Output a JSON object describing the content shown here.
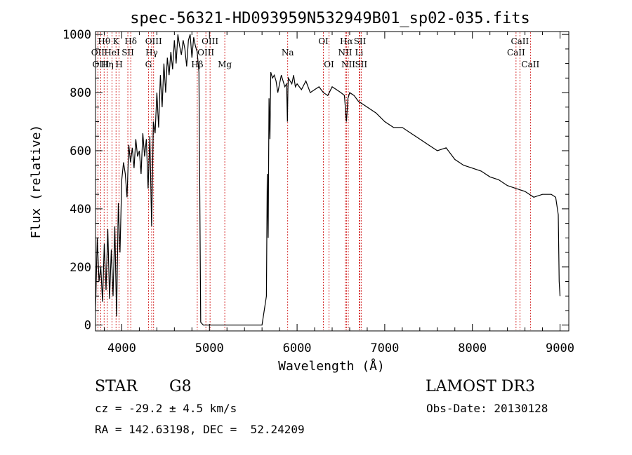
{
  "chart_data": {
    "type": "line",
    "title": "spec-56321-HD093959N532949B01_sp02-035.fits",
    "xlabel": "Wavelength (Å)",
    "ylabel": "Flux (relative)",
    "xlim": [
      3700,
      9100
    ],
    "ylim": [
      -20,
      1010
    ],
    "xticks": [
      4000,
      5000,
      6000,
      7000,
      8000,
      9000
    ],
    "yticks": [
      0,
      200,
      400,
      600,
      800,
      1000
    ],
    "grid": false,
    "series": [
      {
        "name": "flux",
        "x": [
          3700,
          3720,
          3740,
          3760,
          3780,
          3800,
          3820,
          3840,
          3860,
          3880,
          3900,
          3920,
          3940,
          3960,
          3980,
          4000,
          4020,
          4040,
          4060,
          4080,
          4100,
          4120,
          4140,
          4160,
          4180,
          4200,
          4220,
          4240,
          4260,
          4280,
          4300,
          4320,
          4340,
          4360,
          4380,
          4400,
          4420,
          4440,
          4460,
          4480,
          4500,
          4520,
          4540,
          4560,
          4580,
          4600,
          4620,
          4640,
          4660,
          4680,
          4700,
          4720,
          4740,
          4760,
          4780,
          4800,
          4820,
          4840,
          4860,
          4880,
          4900,
          4930,
          5000,
          5200,
          5400,
          5600,
          5650,
          5660,
          5670,
          5680,
          5690,
          5700,
          5720,
          5740,
          5760,
          5780,
          5800,
          5820,
          5840,
          5860,
          5880,
          5890,
          5895,
          5900,
          5920,
          5940,
          5960,
          5980,
          6000,
          6050,
          6100,
          6150,
          6200,
          6250,
          6300,
          6350,
          6400,
          6450,
          6500,
          6540,
          6563,
          6580,
          6600,
          6650,
          6700,
          6750,
          6800,
          6900,
          7000,
          7100,
          7200,
          7300,
          7400,
          7500,
          7600,
          7700,
          7800,
          7900,
          8000,
          8100,
          8200,
          8300,
          8400,
          8500,
          8600,
          8700,
          8800,
          8900,
          8950,
          8980,
          8990,
          9000
        ],
        "y": [
          50,
          300,
          150,
          200,
          80,
          280,
          120,
          330,
          90,
          260,
          100,
          340,
          30,
          420,
          250,
          500,
          560,
          520,
          440,
          620,
          560,
          610,
          540,
          640,
          580,
          600,
          520,
          660,
          580,
          640,
          470,
          650,
          340,
          700,
          660,
          800,
          680,
          860,
          750,
          900,
          800,
          920,
          860,
          940,
          880,
          980,
          900,
          1000,
          960,
          930,
          980,
          950,
          890,
          980,
          1000,
          920,
          990,
          960,
          940,
          870,
          10,
          0,
          0,
          0,
          0,
          0,
          100,
          520,
          300,
          780,
          640,
          870,
          850,
          860,
          840,
          800,
          830,
          860,
          840,
          820,
          830,
          700,
          810,
          850,
          840,
          830,
          860,
          820,
          830,
          810,
          840,
          800,
          810,
          820,
          800,
          790,
          820,
          810,
          800,
          790,
          700,
          780,
          800,
          790,
          770,
          760,
          750,
          730,
          700,
          680,
          680,
          660,
          640,
          620,
          600,
          610,
          570,
          550,
          540,
          530,
          510,
          500,
          480,
          470,
          460,
          440,
          450,
          450,
          440,
          380,
          150,
          100
        ]
      }
    ],
    "spectral_lines": [
      {
        "label": "Hθ",
        "x": 3798,
        "row": 1
      },
      {
        "label": "OII",
        "x": 3727,
        "row": 2
      },
      {
        "label": "OIII",
        "x": 3760,
        "row": 3
      },
      {
        "label": "K",
        "x": 3934,
        "row": 1
      },
      {
        "label": "HeI",
        "x": 3889,
        "row": 2
      },
      {
        "label": "Hη",
        "x": 3835,
        "row": 3
      },
      {
        "label": "SII",
        "x": 4069,
        "row": 2
      },
      {
        "label": "H",
        "x": 3969,
        "row": 3
      },
      {
        "label": "Hδ",
        "x": 4102,
        "row": 1
      },
      {
        "label": "OIII",
        "x": 4363,
        "row": 1
      },
      {
        "label": "Hγ",
        "x": 4341,
        "row": 2
      },
      {
        "label": "G",
        "x": 4304,
        "row": 3
      },
      {
        "label": "OIII",
        "x": 5007,
        "row": 1
      },
      {
        "label": "OIII",
        "x": 4959,
        "row": 2
      },
      {
        "label": "Hβ",
        "x": 4861,
        "row": 3
      },
      {
        "label": "Mg",
        "x": 5175,
        "row": 3
      },
      {
        "label": "Na",
        "x": 5893,
        "row": 2
      },
      {
        "label": "OI",
        "x": 6300,
        "row": 1
      },
      {
        "label": "OI",
        "x": 6364,
        "row": 3
      },
      {
        "label": "Hα",
        "x": 6563,
        "row": 1
      },
      {
        "label": "SII",
        "x": 6717,
        "row": 1
      },
      {
        "label": "NII",
        "x": 6548,
        "row": 2
      },
      {
        "label": "Li",
        "x": 6708,
        "row": 2
      },
      {
        "label": "NII",
        "x": 6584,
        "row": 3
      },
      {
        "label": "SII",
        "x": 6731,
        "row": 3
      },
      {
        "label": "CaII",
        "x": 8542,
        "row": 1
      },
      {
        "label": "CaII",
        "x": 8498,
        "row": 2
      },
      {
        "label": "CaII",
        "x": 8662,
        "row": 3
      }
    ]
  },
  "info": {
    "class_label": "STAR",
    "subclass_label": "G8",
    "survey_label": "LAMOST DR3",
    "redshift": "cz = -29.2 ± 4.5 km/s",
    "obs_date": "Obs-Date: 20130128",
    "coords": "RA = 142.63198, DEC =  52.24209"
  },
  "colors": {
    "line": "#000000",
    "marker": "#cc0000",
    "marker_text": "#000000"
  }
}
